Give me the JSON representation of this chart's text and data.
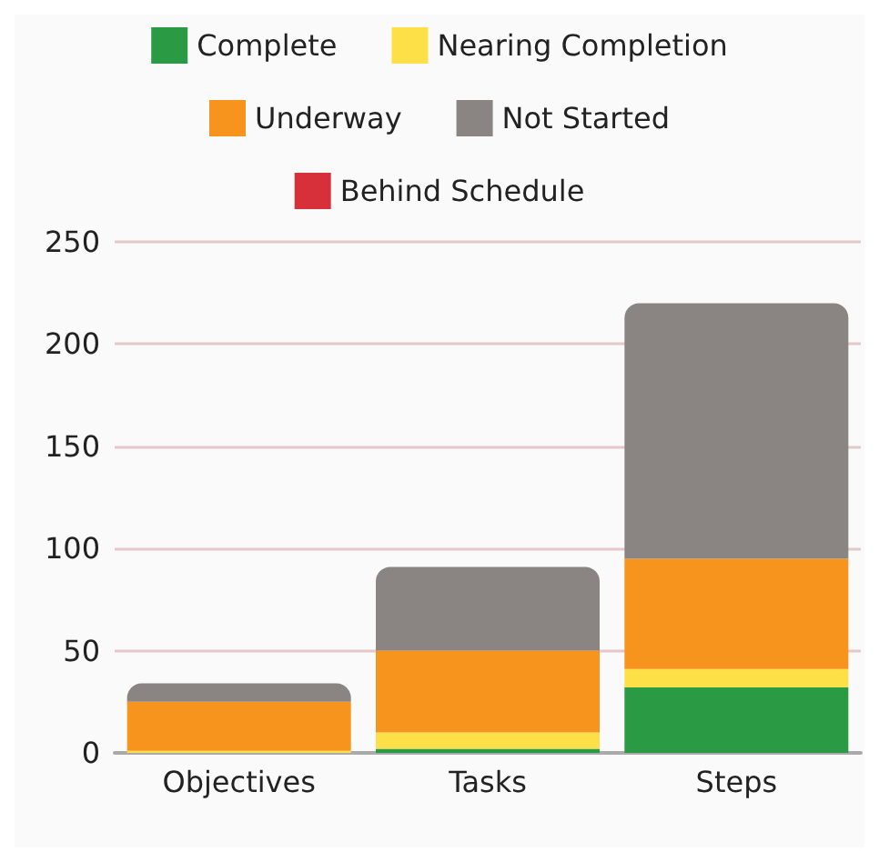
{
  "chart_data": {
    "type": "bar",
    "stacked": true,
    "categories": [
      "Objectives",
      "Tasks",
      "Steps"
    ],
    "series": [
      {
        "name": "Complete",
        "color": "#2a9a44",
        "values": [
          0,
          2,
          32
        ]
      },
      {
        "name": "Nearing Completion",
        "color": "#fde047",
        "values": [
          1,
          8,
          9
        ]
      },
      {
        "name": "Underway",
        "color": "#f7941d",
        "values": [
          24,
          40,
          54
        ]
      },
      {
        "name": "Not Started",
        "color": "#8a8583",
        "values": [
          9,
          41,
          125
        ]
      },
      {
        "name": "Behind Schedule",
        "color": "#d8303a",
        "values": [
          0,
          0,
          0
        ]
      }
    ],
    "ylim": [
      0,
      250
    ],
    "yticks": [
      0,
      50,
      100,
      150,
      200,
      250
    ],
    "grid": "y",
    "legend": "top"
  }
}
